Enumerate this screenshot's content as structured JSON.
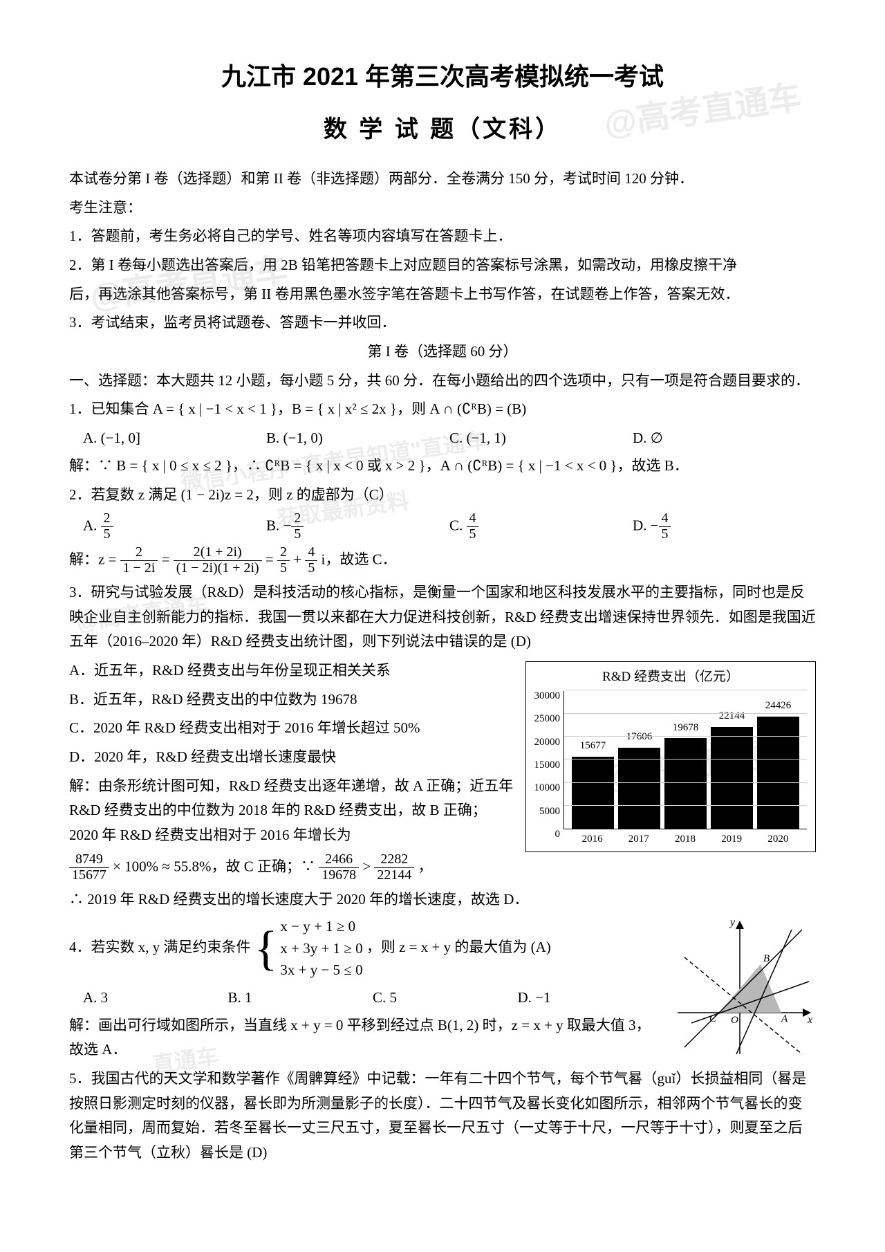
{
  "title": "九江市 2021 年第三次高考模拟统一考试",
  "subtitle": "数 学 试 题（文科）",
  "intro": "本试卷分第 I 卷（选择题）和第 II 卷（非选择题）两部分．全卷满分 150 分，考试时间 120 分钟．",
  "notice_head": "考生注意：",
  "notice1": "1．答题前，考生务必将自己的学号、姓名等项内容填写在答题卡上．",
  "notice2": "2．第 I 卷每小题选出答案后，用 2B 铅笔把答题卡上对应题目的答案标号涂黑，如需改动，用橡皮擦干净",
  "notice2b": "后，再选涂其他答案标号，第 II 卷用黑色墨水签字笔在答题卡上书写作答，在试题卷上作答，答案无效．",
  "notice3": "3．考试结束，监考员将试题卷、答题卡一并收回．",
  "section1_title": "第 I 卷（选择题 60 分）",
  "section1_head": "一、选择题：本大题共 12 小题，每小题 5 分，共 60 分．在每小题给出的四个选项中，只有一项是符合题目要求的．",
  "q1": "1．已知集合 A = { x | −1 < x < 1 }，B = { x | x² ≤ 2x }，则 A ∩ (∁ᴿB) = (B)",
  "q1a": "A. (−1, 0]",
  "q1b": "B. (−1, 0)",
  "q1c": "C. (−1, 1)",
  "q1d": "D. ∅",
  "q1sol": "解：∵ B = { x | 0 ≤ x ≤ 2 }，∴ ∁ᴿB = { x | x < 0 或 x > 2 }，A ∩ (∁ᴿB) = { x | −1 < x < 0 }，故选 B．",
  "q2": "2．若复数 z 满足 (1 − 2i)z = 2，则 z 的虚部为（C）",
  "q2a_num": "2",
  "q2a_den": "5",
  "q2b_num": "2",
  "q2b_den": "5",
  "q2c_num": "4",
  "q2c_den": "5",
  "q2d_num": "4",
  "q2d_den": "5",
  "q2sol_pre": "解：z = ",
  "q2sol_f1n": "2",
  "q2sol_f1d": "1 − 2i",
  "q2sol_eq": " = ",
  "q2sol_f2n": "2(1 + 2i)",
  "q2sol_f2d": "(1 − 2i)(1 + 2i)",
  "q2sol_eq2": " = ",
  "q2sol_f3n": "2",
  "q2sol_f3d": "5",
  "q2sol_plus": " + ",
  "q2sol_f4n": "4",
  "q2sol_f4d": "5",
  "q2sol_tail": " i，故选 C．",
  "q3": "3．研究与试验发展（R&D）是科技活动的核心指标，是衡量一个国家和地区科技发展水平的主要指标，同时也是反映企业自主创新能力的指标．我国一贯以来都在大力促进科技创新，R&D 经费支出增速保持世界领先．如图是我国近五年（2016–2020 年）R&D 经费支出统计图，则下列说法中错误的是 (D)",
  "q3a": "A．近五年，R&D 经费支出与年份呈现正相关关系",
  "q3b": "B．近五年，R&D 经费支出的中位数为 19678",
  "q3c": "C．2020 年 R&D 经费支出相对于 2016 年增长超过 50%",
  "q3d": "D．2020 年，R&D 经费支出增长速度最快",
  "q3sol1": "解：由条形统计图可知，R&D 经费支出逐年递增，故 A 正确；近五年 R&D 经费支出的中位数为 2018 年的 R&D 经费支出，故 B 正确；2020 年 R&D 经费支出相对于 2016 年增长为",
  "q3sol_f1n": "8749",
  "q3sol_f1d": "15677",
  "q3sol_mid": " × 100% ≈ 55.8%，故 C 正确；∵ ",
  "q3sol_f2n": "2466",
  "q3sol_f2d": "19678",
  "q3sol_gt": " > ",
  "q3sol_f3n": "2282",
  "q3sol_f3d": "22144",
  "q3sol_tail2": "，",
  "q3sol2": "∴ 2019 年 R&D 经费支出的增长速度大于 2020 年的增长速度，故选 D．",
  "chart": {
    "title": "R&D 经费支出（亿元）",
    "ylim": 30000,
    "yticks": [
      0,
      5000,
      10000,
      15000,
      20000,
      25000,
      30000
    ],
    "categories": [
      "2016",
      "2017",
      "2018",
      "2019",
      "2020"
    ],
    "values": [
      15677,
      17606,
      19678,
      22144,
      24426
    ],
    "bar_color": "#000000",
    "grid_color": "#cfcfcf",
    "background": "#ffffff"
  },
  "q4_pre": "4．若实数 x, y 满足约束条件 ",
  "q4_l1": "x − y + 1 ≥ 0",
  "q4_l2": "x + 3y + 1 ≥ 0",
  "q4_l3": "3x + y − 5 ≤ 0",
  "q4_post": "，则 z = x + y 的最大值为 (A)",
  "q4a": "A. 3",
  "q4b": "B. 1",
  "q4c": "C. 5",
  "q4d": "D. −1",
  "q4sol": "解：画出可行域如图所示，当直线 x + y = 0 平移到经过点 B(1, 2) 时，z = x + y 取最大值 3，故选 A．",
  "q5": "5．我国古代的天文学和数学著作《周髀算经》中记载：一年有二十四个节气，每个节气晷（guǐ）长损益相同（晷是按照日影测定时刻的仪器，晷长即为所测量影子的长度）．二十四节气及晷长变化如图所示，相邻两个节气晷长的变化量相同，周而复始．若冬至晷长一丈三尺五寸，夏至晷长一尺五寸（一丈等于十尺，一尺等于十寸），则夏至之后第三个节气（立秋）晷长是 (D)",
  "watermarks": {
    "w1": "@高考直通车",
    "w2": "@高考直通车",
    "w3": "微信小程序\"高考早知道\"直通车",
    "w4": "获取最新资料",
    "w5": "@高考直通车",
    "w6": "@高考直通车",
    "w7": "直通车"
  },
  "diagram": {
    "axis_color": "#000000",
    "region_fill": "#b8b8b8",
    "line_color": "#000000",
    "labels": {
      "x": "x",
      "y": "y",
      "O": "O",
      "A": "A",
      "B": "B",
      "C": "C"
    }
  }
}
